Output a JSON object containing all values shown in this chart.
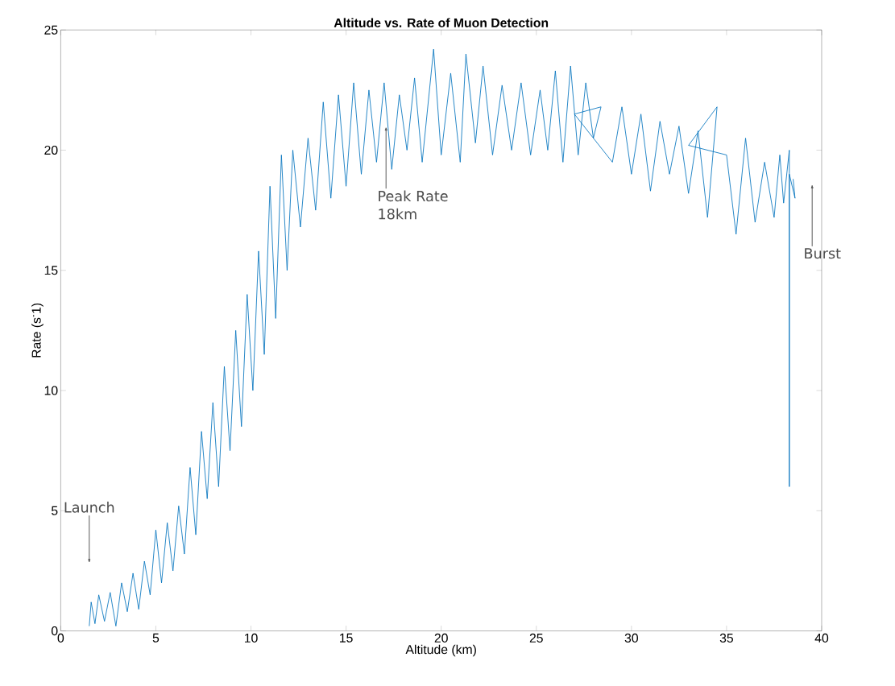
{
  "chart_data": {
    "type": "line",
    "title": "Altitude vs. Rate of Muon Detection",
    "xlabel": "Altitude (km)",
    "ylabel": "Rate (s$^{-}$1)",
    "xlim": [
      0,
      40
    ],
    "ylim": [
      0,
      25
    ],
    "xticks": [
      0,
      5,
      10,
      15,
      20,
      25,
      30,
      35,
      40
    ],
    "yticks": [
      0,
      5,
      10,
      15,
      20,
      25
    ],
    "grid": false,
    "series": [
      {
        "color": "#0072bd",
        "x": [
          1.5,
          1.6,
          1.8,
          2.0,
          2.3,
          2.6,
          2.9,
          3.2,
          3.5,
          3.8,
          4.1,
          4.4,
          4.7,
          5.0,
          5.3,
          5.6,
          5.9,
          6.2,
          6.5,
          6.8,
          7.1,
          7.4,
          7.7,
          8.0,
          8.3,
          8.6,
          8.9,
          9.2,
          9.5,
          9.8,
          10.1,
          10.4,
          10.7,
          11.0,
          11.3,
          11.6,
          11.9,
          12.2,
          12.6,
          13.0,
          13.4,
          13.8,
          14.2,
          14.6,
          15.0,
          15.4,
          15.8,
          16.2,
          16.6,
          17.0,
          17.4,
          17.8,
          18.2,
          18.6,
          19.0,
          19.6,
          20.0,
          20.5,
          21.0,
          21.3,
          21.8,
          22.2,
          22.7,
          23.2,
          23.7,
          24.2,
          24.7,
          25.2,
          25.6,
          26.0,
          26.4,
          26.8,
          27.2,
          27.6,
          28.0,
          28.4,
          27.0,
          29.0,
          29.5,
          30.0,
          30.5,
          31.0,
          31.5,
          32.0,
          32.5,
          33.0,
          33.5,
          34.0,
          34.5,
          33.0,
          35.0,
          35.5,
          36.0,
          36.5,
          37.0,
          37.5,
          37.8,
          38.0,
          38.3,
          38.3,
          38.3,
          38.6,
          38.5
        ],
        "values": [
          0.2,
          1.2,
          0.3,
          1.5,
          0.4,
          1.6,
          0.2,
          2.0,
          0.8,
          2.4,
          0.9,
          2.9,
          1.5,
          4.2,
          2.0,
          4.5,
          2.5,
          5.2,
          3.2,
          6.8,
          4.0,
          8.3,
          5.5,
          9.5,
          6.0,
          11.0,
          7.5,
          12.5,
          8.5,
          14.0,
          10.0,
          15.8,
          11.5,
          18.5,
          13.0,
          19.8,
          15.0,
          20.0,
          16.8,
          20.5,
          17.5,
          22.0,
          18.0,
          22.3,
          18.5,
          22.8,
          19.0,
          22.5,
          19.5,
          22.8,
          19.2,
          22.3,
          20.0,
          23.0,
          19.5,
          24.2,
          19.8,
          23.2,
          19.5,
          24.0,
          20.3,
          23.5,
          19.8,
          22.7,
          20.0,
          22.8,
          19.8,
          22.5,
          20.0,
          23.3,
          19.5,
          23.5,
          19.8,
          22.8,
          20.5,
          21.8,
          21.5,
          19.5,
          21.8,
          19.0,
          21.5,
          18.3,
          21.2,
          19.0,
          21.0,
          18.2,
          20.8,
          17.2,
          21.8,
          20.2,
          19.8,
          16.5,
          20.5,
          17.0,
          19.5,
          17.2,
          19.8,
          17.8,
          20.0,
          6.0,
          19.0,
          18.0,
          18.8
        ]
      }
    ],
    "annotations": [
      "Launch",
      {
        "text": "Peak Rate 18km",
        "x": 17.1,
        "y": 21.0
      },
      "Burst"
    ]
  }
}
